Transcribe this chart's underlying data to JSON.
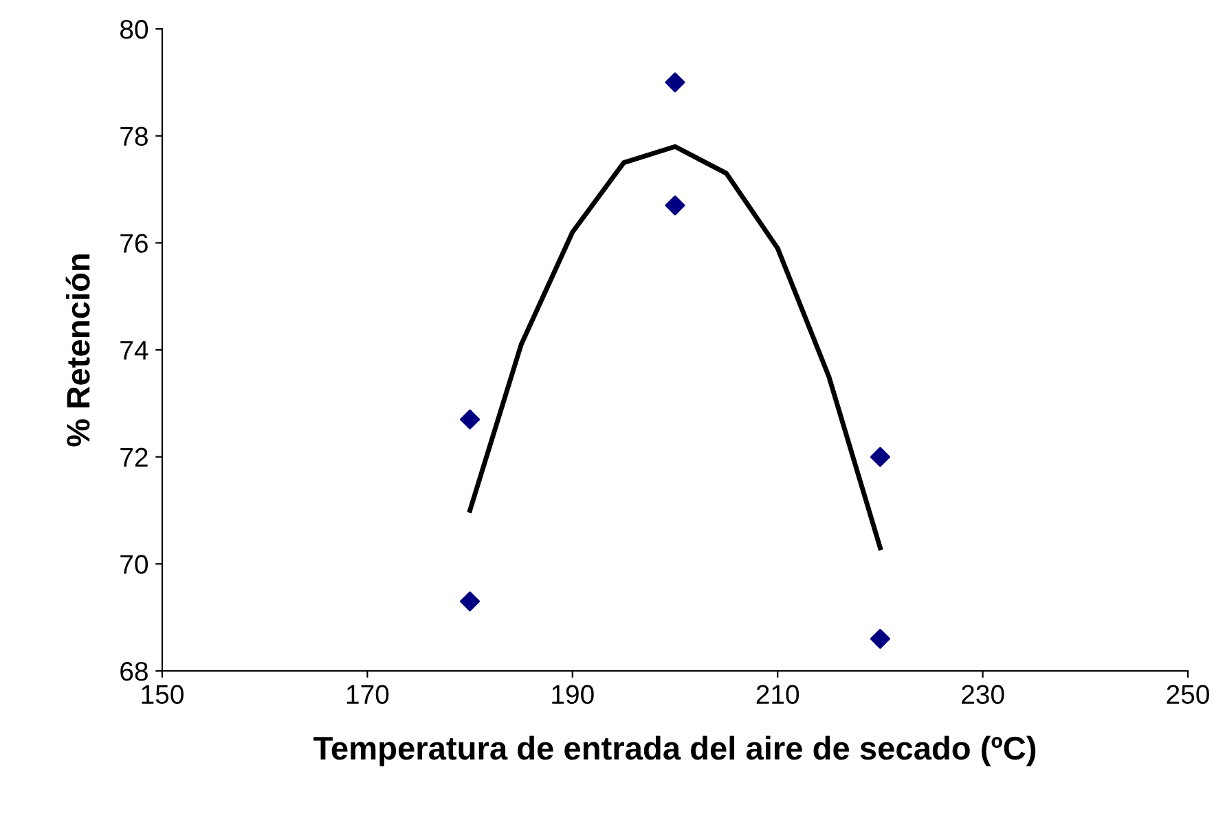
{
  "chart_data": {
    "type": "scatter",
    "xlabel": "Temperatura de entrada del aire de secado (ºC)",
    "ylabel": "% Retención",
    "xlim": [
      150,
      250
    ],
    "xticks": [
      150,
      170,
      190,
      210,
      230,
      250
    ],
    "ylim": [
      68,
      80
    ],
    "yticks": [
      68,
      70,
      72,
      74,
      76,
      78,
      80
    ],
    "grid": false,
    "legend": false,
    "series": [
      {
        "color": "#000080",
        "marker": "diamond",
        "x": [
          180,
          180,
          200,
          200,
          220,
          220
        ],
        "values": [
          72.7,
          69.3,
          79.0,
          76.7,
          72.0,
          68.6
        ]
      },
      {
        "type": "line",
        "color": "#000000",
        "marker": "none",
        "line_style": "solid",
        "x": [
          180,
          185,
          190,
          195,
          200,
          205,
          210,
          215,
          220
        ],
        "values": [
          71.0,
          74.1,
          76.2,
          77.5,
          77.8,
          77.3,
          75.9,
          73.5,
          70.3
        ]
      }
    ]
  }
}
